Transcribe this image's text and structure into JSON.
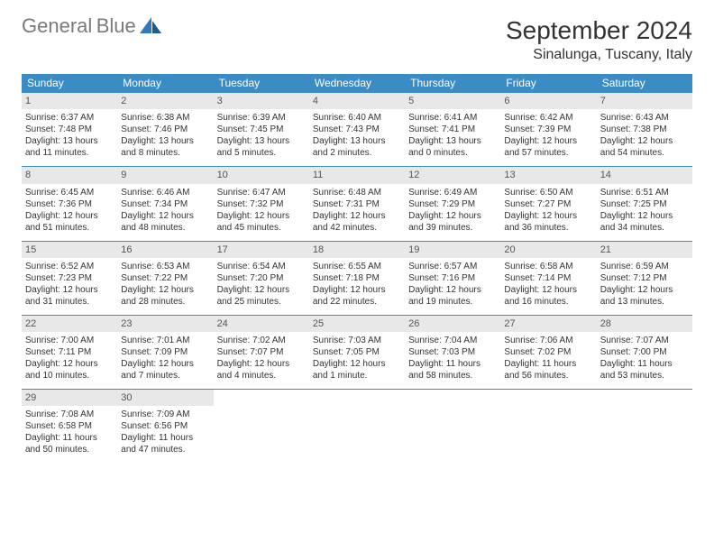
{
  "logo": {
    "line1": "General",
    "line2": "Blue"
  },
  "title": "September 2024",
  "location": "Sinalunga, Tuscany, Italy",
  "colors": {
    "header_bg": "#3b8bc5",
    "header_text": "#ffffff",
    "daynum_bg": "#e8e8e8",
    "text": "#333333",
    "logo_gray": "#7a7a7a",
    "logo_blue": "#2f7bbf",
    "week_border": "#3b8bc5"
  },
  "dayNames": [
    "Sunday",
    "Monday",
    "Tuesday",
    "Wednesday",
    "Thursday",
    "Friday",
    "Saturday"
  ],
  "days": [
    {
      "n": 1,
      "sr": "6:37 AM",
      "ss": "7:48 PM",
      "dl": "13 hours and 11 minutes."
    },
    {
      "n": 2,
      "sr": "6:38 AM",
      "ss": "7:46 PM",
      "dl": "13 hours and 8 minutes."
    },
    {
      "n": 3,
      "sr": "6:39 AM",
      "ss": "7:45 PM",
      "dl": "13 hours and 5 minutes."
    },
    {
      "n": 4,
      "sr": "6:40 AM",
      "ss": "7:43 PM",
      "dl": "13 hours and 2 minutes."
    },
    {
      "n": 5,
      "sr": "6:41 AM",
      "ss": "7:41 PM",
      "dl": "13 hours and 0 minutes."
    },
    {
      "n": 6,
      "sr": "6:42 AM",
      "ss": "7:39 PM",
      "dl": "12 hours and 57 minutes."
    },
    {
      "n": 7,
      "sr": "6:43 AM",
      "ss": "7:38 PM",
      "dl": "12 hours and 54 minutes."
    },
    {
      "n": 8,
      "sr": "6:45 AM",
      "ss": "7:36 PM",
      "dl": "12 hours and 51 minutes."
    },
    {
      "n": 9,
      "sr": "6:46 AM",
      "ss": "7:34 PM",
      "dl": "12 hours and 48 minutes."
    },
    {
      "n": 10,
      "sr": "6:47 AM",
      "ss": "7:32 PM",
      "dl": "12 hours and 45 minutes."
    },
    {
      "n": 11,
      "sr": "6:48 AM",
      "ss": "7:31 PM",
      "dl": "12 hours and 42 minutes."
    },
    {
      "n": 12,
      "sr": "6:49 AM",
      "ss": "7:29 PM",
      "dl": "12 hours and 39 minutes."
    },
    {
      "n": 13,
      "sr": "6:50 AM",
      "ss": "7:27 PM",
      "dl": "12 hours and 36 minutes."
    },
    {
      "n": 14,
      "sr": "6:51 AM",
      "ss": "7:25 PM",
      "dl": "12 hours and 34 minutes."
    },
    {
      "n": 15,
      "sr": "6:52 AM",
      "ss": "7:23 PM",
      "dl": "12 hours and 31 minutes."
    },
    {
      "n": 16,
      "sr": "6:53 AM",
      "ss": "7:22 PM",
      "dl": "12 hours and 28 minutes."
    },
    {
      "n": 17,
      "sr": "6:54 AM",
      "ss": "7:20 PM",
      "dl": "12 hours and 25 minutes."
    },
    {
      "n": 18,
      "sr": "6:55 AM",
      "ss": "7:18 PM",
      "dl": "12 hours and 22 minutes."
    },
    {
      "n": 19,
      "sr": "6:57 AM",
      "ss": "7:16 PM",
      "dl": "12 hours and 19 minutes."
    },
    {
      "n": 20,
      "sr": "6:58 AM",
      "ss": "7:14 PM",
      "dl": "12 hours and 16 minutes."
    },
    {
      "n": 21,
      "sr": "6:59 AM",
      "ss": "7:12 PM",
      "dl": "12 hours and 13 minutes."
    },
    {
      "n": 22,
      "sr": "7:00 AM",
      "ss": "7:11 PM",
      "dl": "12 hours and 10 minutes."
    },
    {
      "n": 23,
      "sr": "7:01 AM",
      "ss": "7:09 PM",
      "dl": "12 hours and 7 minutes."
    },
    {
      "n": 24,
      "sr": "7:02 AM",
      "ss": "7:07 PM",
      "dl": "12 hours and 4 minutes."
    },
    {
      "n": 25,
      "sr": "7:03 AM",
      "ss": "7:05 PM",
      "dl": "12 hours and 1 minute."
    },
    {
      "n": 26,
      "sr": "7:04 AM",
      "ss": "7:03 PM",
      "dl": "11 hours and 58 minutes."
    },
    {
      "n": 27,
      "sr": "7:06 AM",
      "ss": "7:02 PM",
      "dl": "11 hours and 56 minutes."
    },
    {
      "n": 28,
      "sr": "7:07 AM",
      "ss": "7:00 PM",
      "dl": "11 hours and 53 minutes."
    },
    {
      "n": 29,
      "sr": "7:08 AM",
      "ss": "6:58 PM",
      "dl": "11 hours and 50 minutes."
    },
    {
      "n": 30,
      "sr": "7:09 AM",
      "ss": "6:56 PM",
      "dl": "11 hours and 47 minutes."
    }
  ],
  "labels": {
    "sunrise": "Sunrise:",
    "sunset": "Sunset:",
    "daylight": "Daylight:"
  },
  "startWeekday": 0,
  "fonts": {
    "title_size": 28,
    "location_size": 16,
    "header_size": 12,
    "body_size": 10
  }
}
